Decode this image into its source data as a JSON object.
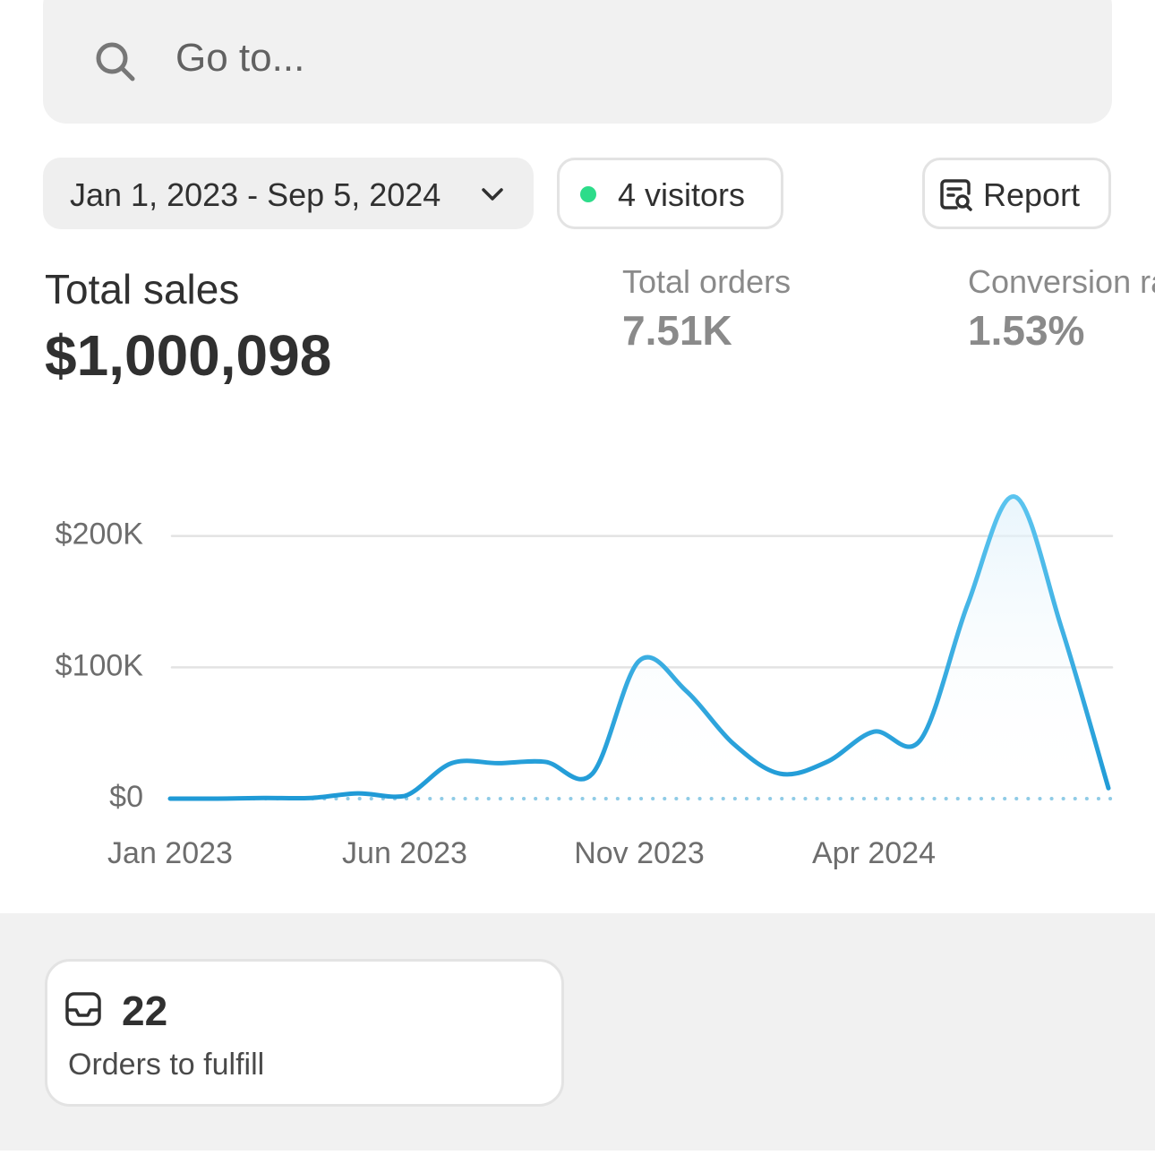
{
  "search": {
    "placeholder": "Go to..."
  },
  "filters": {
    "date_range": "Jan 1, 2023 - Sep 5, 2024",
    "visitors": "4 visitors",
    "report": "Report"
  },
  "metrics": {
    "total_sales": {
      "label": "Total sales",
      "value": "$1,000,098"
    },
    "total_orders": {
      "label": "Total orders",
      "value": "7.51K"
    },
    "conversion": {
      "label": "Conversion rate",
      "value": "1.53%"
    }
  },
  "chart_data": {
    "type": "line",
    "categories": [
      "Jan 2023",
      null,
      null,
      null,
      null,
      "Jun 2023",
      null,
      null,
      null,
      null,
      "Nov 2023",
      null,
      null,
      null,
      null,
      "Apr 2024",
      null,
      null,
      null,
      null,
      null
    ],
    "series": [
      {
        "name": "Total sales",
        "color": "#1f9ad6",
        "values": [
          0,
          0,
          500,
          500,
          4000,
          2000,
          27000,
          27000,
          28000,
          19000,
          105000,
          82000,
          42000,
          19000,
          28000,
          51000,
          45000,
          148000,
          230000,
          130000,
          8000
        ]
      }
    ],
    "ylim": [
      0,
      240000
    ],
    "yticks": [
      {
        "value": 0,
        "label": "$0"
      },
      {
        "value": 100000,
        "label": "$100K"
      },
      {
        "value": 200000,
        "label": "$200K"
      }
    ],
    "grid": true
  },
  "card": {
    "count": "22",
    "label": "Orders to fulfill"
  }
}
